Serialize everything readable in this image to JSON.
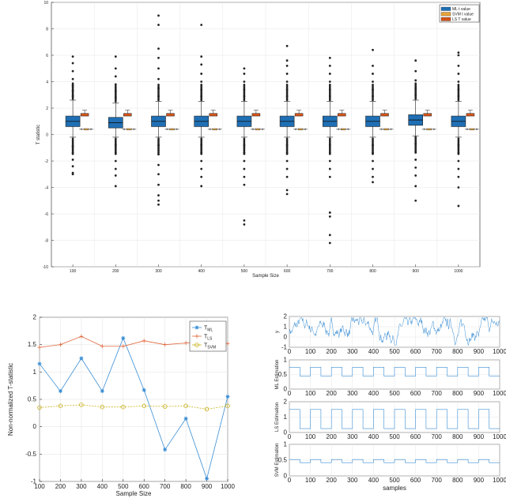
{
  "chart_data": [
    {
      "type": "box",
      "xlabel": "Sample Size",
      "ylabel": "T statistic",
      "ylim": [
        -10,
        10
      ],
      "yticks": [
        -10,
        -8,
        -6,
        -4,
        -2,
        0,
        2,
        4,
        6,
        8,
        10
      ],
      "categories": [
        "100",
        "200",
        "300",
        "400",
        "500",
        "600",
        "700",
        "800",
        "900",
        "1000"
      ],
      "legend_position": "top-right",
      "grid": true,
      "series": [
        {
          "name": "ML t value",
          "color": "#1f6fb4",
          "boxes": [
            {
              "median": 1.0,
              "q1": 0.6,
              "q3": 1.4,
              "whisker_low": -0.2,
              "whisker_high": 2.6,
              "outliers_high": [
                2.9,
                3.3,
                3.7,
                4.2,
                4.8,
                5.4,
                5.9
              ],
              "outliers_low": [
                -0.9,
                -1.4,
                -1.9,
                -2.4,
                -2.9,
                -3.0
              ]
            },
            {
              "median": 0.9,
              "q1": 0.5,
              "q3": 1.3,
              "whisker_low": -0.2,
              "whisker_high": 2.4,
              "outliers_high": [
                2.8,
                3.3,
                3.8,
                4.4,
                5.0,
                5.9
              ],
              "outliers_low": [
                -0.8,
                -1.4,
                -2.0,
                -2.6,
                -3.1,
                -3.9
              ]
            },
            {
              "median": 1.0,
              "q1": 0.6,
              "q3": 1.4,
              "whisker_low": -0.2,
              "whisker_high": 2.5,
              "outliers_high": [
                2.9,
                3.5,
                4.2,
                5.0,
                5.8,
                6.5,
                8.3,
                9.0
              ],
              "outliers_low": [
                -0.8,
                -1.5,
                -2.3,
                -3.0,
                -3.8,
                -4.6,
                -5.0,
                -5.3
              ]
            },
            {
              "median": 1.0,
              "q1": 0.6,
              "q3": 1.4,
              "whisker_low": -0.2,
              "whisker_high": 2.5,
              "outliers_high": [
                2.9,
                3.4,
                4.0,
                4.6,
                5.3,
                5.9,
                8.3
              ],
              "outliers_low": [
                -0.8,
                -1.4,
                -2.0,
                -2.6,
                -3.2,
                -3.9
              ]
            },
            {
              "median": 1.0,
              "q1": 0.6,
              "q3": 1.4,
              "whisker_low": -0.2,
              "whisker_high": 2.5,
              "outliers_high": [
                2.9,
                3.4,
                4.0,
                4.6,
                5.0
              ],
              "outliers_low": [
                -0.8,
                -1.4,
                -2.0,
                -2.6,
                -3.2,
                -3.8,
                -6.5,
                -6.8
              ]
            },
            {
              "median": 1.0,
              "q1": 0.6,
              "q3": 1.4,
              "whisker_low": -0.2,
              "whisker_high": 2.5,
              "outliers_high": [
                2.9,
                3.4,
                4.0,
                4.6,
                5.2,
                5.6,
                6.7
              ],
              "outliers_low": [
                -0.8,
                -1.4,
                -2.0,
                -2.6,
                -3.2,
                -4.2,
                -4.5
              ]
            },
            {
              "median": 1.0,
              "q1": 0.6,
              "q3": 1.4,
              "whisker_low": -0.2,
              "whisker_high": 2.5,
              "outliers_high": [
                2.9,
                3.4,
                4.0,
                4.6,
                5.2,
                5.8
              ],
              "outliers_low": [
                -0.8,
                -1.4,
                -2.0,
                -2.6,
                -3.2,
                -5.9,
                -6.2,
                -7.6,
                -8.2
              ]
            },
            {
              "median": 1.0,
              "q1": 0.6,
              "q3": 1.4,
              "whisker_low": -0.2,
              "whisker_high": 2.5,
              "outliers_high": [
                2.9,
                3.4,
                4.0,
                4.6,
                5.2,
                6.4
              ],
              "outliers_low": [
                -0.8,
                -1.4,
                -2.0,
                -2.6,
                -3.2,
                -3.6
              ]
            },
            {
              "median": 1.1,
              "q1": 0.7,
              "q3": 1.5,
              "whisker_low": -0.1,
              "whisker_high": 2.6,
              "outliers_high": [
                3.0,
                3.5,
                4.1,
                4.8,
                5.6
              ],
              "outliers_low": [
                -0.7,
                -1.3,
                -1.9,
                -2.5,
                -3.1,
                -3.9,
                -5.0
              ]
            },
            {
              "median": 1.0,
              "q1": 0.6,
              "q3": 1.4,
              "whisker_low": -0.2,
              "whisker_high": 2.5,
              "outliers_high": [
                2.9,
                3.4,
                4.0,
                4.6,
                5.2,
                6.0,
                6.2
              ],
              "outliers_low": [
                -0.8,
                -1.4,
                -2.0,
                -2.6,
                -3.2,
                -4.0,
                -5.4
              ]
            }
          ]
        },
        {
          "name": "SVM t value",
          "color": "#e8a33a",
          "medians": [
            0.4,
            0.4,
            0.4,
            0.4,
            0.4,
            0.4,
            0.4,
            0.4,
            0.4,
            0.4
          ]
        },
        {
          "name": "LS T value",
          "color": "#d2541a",
          "medians": [
            1.5,
            1.5,
            1.5,
            1.5,
            1.5,
            1.5,
            1.5,
            1.5,
            1.5,
            1.5
          ]
        }
      ]
    },
    {
      "type": "line",
      "xlabel": "Sample Size",
      "ylabel": "Non-normalized T-statistic",
      "xlim": [
        100,
        1000
      ],
      "ylim": [
        -1,
        2
      ],
      "xticks": [
        100,
        200,
        300,
        400,
        500,
        600,
        700,
        800,
        900,
        1000
      ],
      "yticks": [
        -1,
        -0.5,
        0,
        0.5,
        1,
        1.5,
        2
      ],
      "legend_position": "top-right",
      "grid": true,
      "x": [
        100,
        200,
        300,
        400,
        500,
        600,
        700,
        800,
        900,
        1000
      ],
      "series": [
        {
          "name": "T",
          "sub": "ML",
          "color": "#3a8ed4",
          "marker": "asterisk",
          "values": [
            1.15,
            0.65,
            1.25,
            0.65,
            1.62,
            0.67,
            -0.42,
            0.15,
            -0.95,
            0.55
          ]
        },
        {
          "name": "T",
          "sub": "LS",
          "color": "#e0663a",
          "marker": "plus",
          "values": [
            1.45,
            1.5,
            1.65,
            1.47,
            1.47,
            1.57,
            1.5,
            1.53,
            1.55,
            1.52
          ]
        },
        {
          "name": "T",
          "sub": "SVM",
          "color": "#c8b21e",
          "marker": "circle",
          "values": [
            0.35,
            0.38,
            0.4,
            0.36,
            0.36,
            0.38,
            0.37,
            0.38,
            0.32,
            0.38
          ]
        }
      ]
    },
    {
      "type": "line",
      "panels": [
        {
          "ylabel": "y",
          "ylim": [
            -1,
            2
          ],
          "yticks": [
            -1,
            0,
            1,
            2
          ]
        },
        {
          "ylabel": "ML Estimation",
          "ylim": [
            0,
            1
          ],
          "yticks": [
            0,
            0.5,
            1
          ],
          "low": 0.45,
          "high": 0.75
        },
        {
          "ylabel": "LS Estimation",
          "ylim": [
            0,
            2
          ],
          "yticks": [
            0,
            1,
            2
          ],
          "low": 0.25,
          "high": 1.5
        },
        {
          "ylabel": "SVM Estimation",
          "ylim": [
            0,
            1
          ],
          "yticks": [
            0,
            0.5,
            1
          ],
          "low": 0.42,
          "high": 0.52
        }
      ],
      "xlabel": "samples",
      "xlim": [
        0,
        1000
      ],
      "xticks": [
        0,
        100,
        200,
        300,
        400,
        500,
        600,
        700,
        800,
        900,
        1000
      ],
      "color": "#3a8ed4",
      "switch_period": 50
    }
  ]
}
